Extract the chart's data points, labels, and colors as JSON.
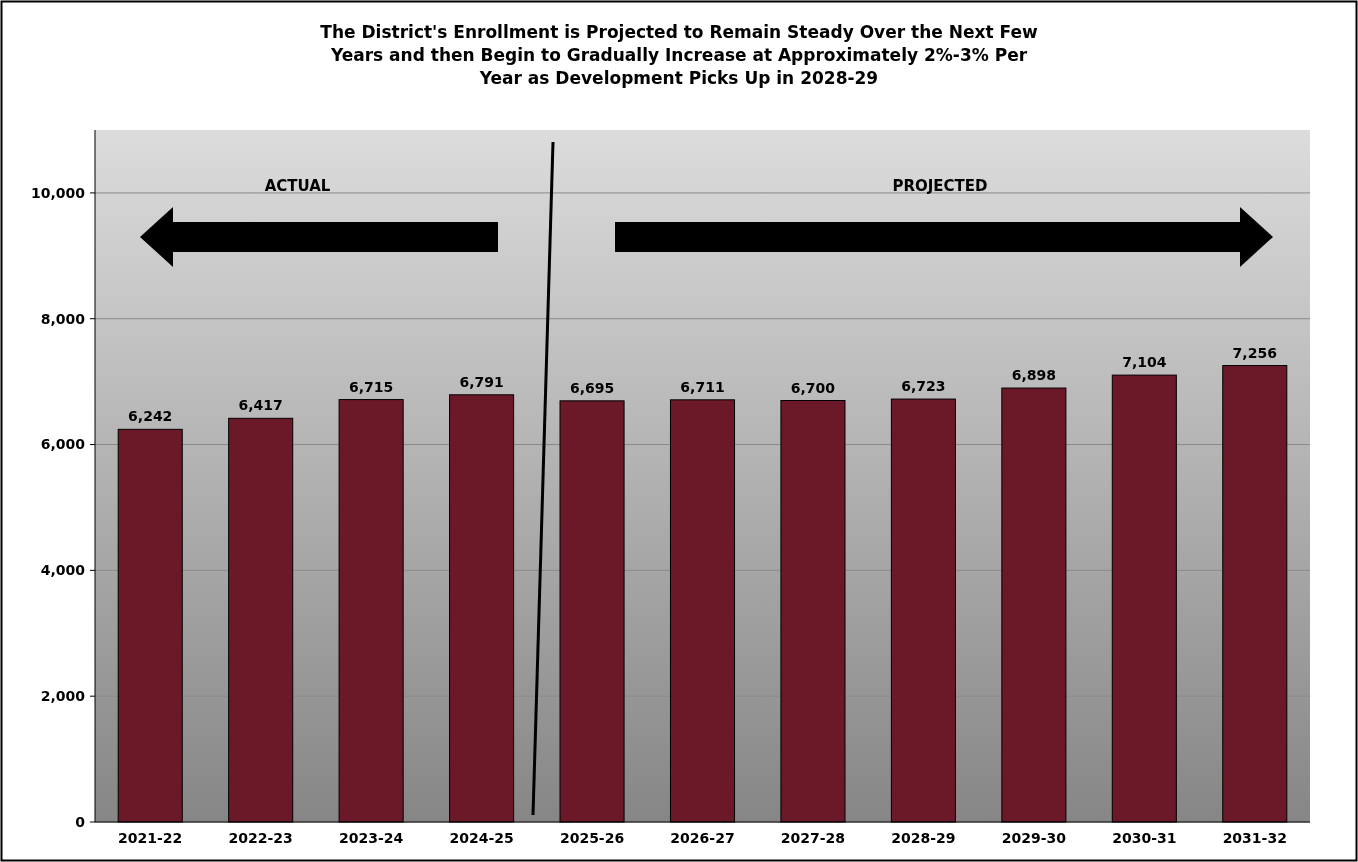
{
  "chart_data": {
    "type": "bar",
    "title": "The District's Enrollment is Projected to Remain Steady Over the Next Few Years and then Begin to Gradually Increase at Approximately 2%-3% Per Year as Development Picks Up in 2028-29",
    "categories": [
      "2021-22",
      "2022-23",
      "2023-24",
      "2024-25",
      "2025-26",
      "2026-27",
      "2027-28",
      "2028-29",
      "2029-30",
      "2030-31",
      "2031-32"
    ],
    "values": [
      6242,
      6417,
      6715,
      6791,
      6695,
      6711,
      6700,
      6723,
      6898,
      7104,
      7256
    ],
    "color": "#6b1829",
    "ylim": [
      0,
      11000
    ],
    "yticks": [
      {
        "value": 0,
        "label": "0"
      },
      {
        "value": 2000,
        "label": "2,000"
      },
      {
        "value": 4000,
        "label": "4,000"
      },
      {
        "value": 6000,
        "label": "6,000"
      },
      {
        "value": 8000,
        "label": "8,000"
      },
      {
        "value": 10000,
        "label": "10,000"
      }
    ],
    "value_labels": [
      "6,242",
      "6,417",
      "6,715",
      "6,791",
      "6,695",
      "6,711",
      "6,700",
      "6,723",
      "6,898",
      "7,104",
      "7,256"
    ],
    "grid": "y",
    "annotations": [
      "ACTUAL",
      "PROJECTED"
    ]
  }
}
